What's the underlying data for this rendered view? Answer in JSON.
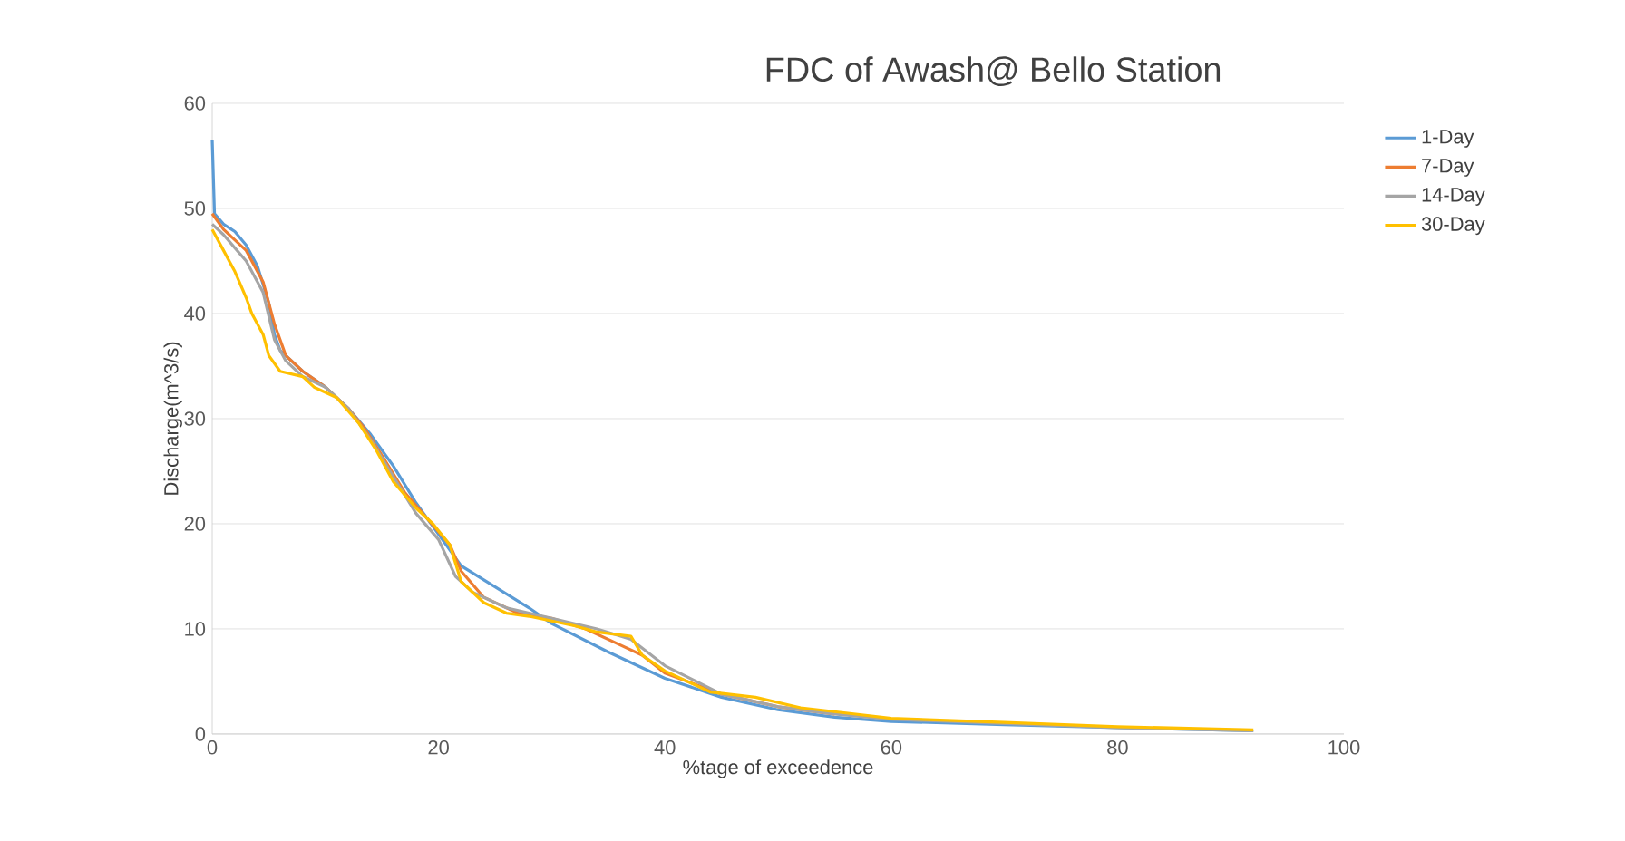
{
  "chart_data": {
    "type": "line",
    "title": "FDC of Awash@ Bello Station",
    "xlabel": "%tage of exceedence",
    "ylabel": "Discharge(m^3/s)",
    "xlim": [
      0,
      100
    ],
    "ylim": [
      0,
      60
    ],
    "xticks": [
      0,
      20,
      40,
      60,
      80,
      100
    ],
    "yticks": [
      0,
      10,
      20,
      30,
      40,
      50,
      60
    ],
    "grid": "y",
    "legend": "right",
    "marker": "none",
    "line_style": "solid",
    "series": [
      {
        "name": "1-Day",
        "color": "#5b9bd5",
        "x": [
          0,
          0.2,
          1,
          2,
          3,
          4,
          5,
          5.5,
          6,
          8,
          10,
          12,
          14,
          16,
          18,
          20,
          22,
          25,
          28,
          30,
          35,
          40,
          45,
          50,
          55,
          60,
          70,
          80,
          92
        ],
        "values": [
          56.5,
          49.5,
          48.5,
          47.8,
          46.5,
          44.5,
          41,
          38,
          36.5,
          34.5,
          33,
          31,
          28.5,
          25.5,
          22,
          19,
          16,
          14,
          12,
          10.5,
          7.8,
          5.3,
          3.5,
          2.3,
          1.6,
          1.2,
          0.9,
          0.6,
          0.3
        ]
      },
      {
        "name": "7-Day",
        "color": "#ed7d31",
        "x": [
          0,
          1,
          3,
          4.5,
          5.5,
          6.5,
          8,
          10,
          12,
          13.5,
          15,
          17,
          19,
          21,
          22,
          24,
          27,
          30,
          33,
          36,
          38,
          40,
          45,
          50,
          55
        ],
        "values": [
          49.5,
          48,
          46,
          43,
          39,
          36,
          34.5,
          33,
          31,
          29,
          26.5,
          23,
          20.5,
          18,
          15.5,
          13,
          11.5,
          11,
          10,
          8.5,
          7.5,
          5.8,
          3.8,
          2.6,
          1.9
        ]
      },
      {
        "name": "14-Day",
        "color": "#a5a5a5",
        "x": [
          0,
          1,
          3,
          4.5,
          5.5,
          6.5,
          8,
          10,
          12,
          14,
          16,
          18,
          20,
          21.5,
          23,
          26,
          30,
          34,
          37,
          40,
          45,
          50,
          55,
          60,
          70,
          80,
          92
        ],
        "values": [
          48.5,
          47.5,
          45,
          42,
          37.5,
          35.5,
          34,
          33,
          31,
          28,
          24.5,
          21,
          18.5,
          15,
          13.5,
          12,
          11,
          10,
          9,
          6.5,
          3.8,
          2.6,
          1.9,
          1.4,
          1,
          0.6,
          0.3
        ]
      },
      {
        "name": "30-Day",
        "color": "#ffc000",
        "x": [
          0,
          1,
          2,
          3,
          3.5,
          4.5,
          5,
          6,
          8,
          9,
          11,
          13,
          14.5,
          16,
          18,
          19.5,
          21,
          22,
          24,
          26,
          28,
          32,
          34,
          37,
          38,
          40,
          44,
          48,
          52,
          56,
          60,
          70,
          80,
          92
        ],
        "values": [
          48,
          46,
          44,
          41.5,
          40,
          38,
          36,
          34.5,
          34,
          33,
          32,
          29.5,
          27,
          24,
          21.5,
          20,
          18,
          14.5,
          12.5,
          11.5,
          11.2,
          10.3,
          9.7,
          9.3,
          7.5,
          6,
          4,
          3.5,
          2.5,
          2,
          1.5,
          1.1,
          0.7,
          0.4
        ]
      }
    ]
  }
}
